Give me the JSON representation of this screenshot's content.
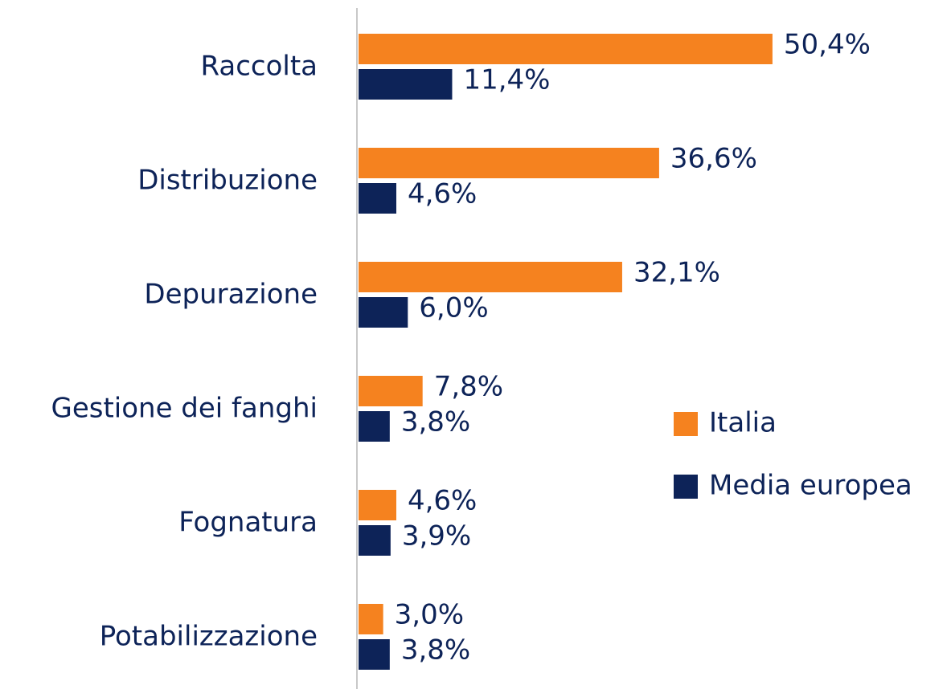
{
  "chart_data": {
    "type": "bar",
    "orientation": "horizontal",
    "categories": [
      "Raccolta",
      "Distribuzione",
      "Depurazione",
      "Gestione dei fanghi",
      "Fognatura",
      "Potabilizzazione"
    ],
    "series": [
      {
        "name": "Italia",
        "color": "#f5821f",
        "values": [
          50.4,
          36.6,
          32.1,
          7.8,
          4.6,
          3.0
        ],
        "value_labels": [
          "50,4%",
          "36,6%",
          "32,1%",
          "7,8%",
          "4,6%",
          "3,0%"
        ]
      },
      {
        "name": "Media europea",
        "color": "#0d2358",
        "values": [
          11.4,
          4.6,
          6.0,
          3.8,
          3.9,
          3.8
        ],
        "value_labels": [
          "11,4%",
          "4,6%",
          "6,0%",
          "3,8%",
          "3,9%",
          "3,8%"
        ]
      }
    ],
    "xlim": [
      0,
      60
    ],
    "legend": "right"
  }
}
